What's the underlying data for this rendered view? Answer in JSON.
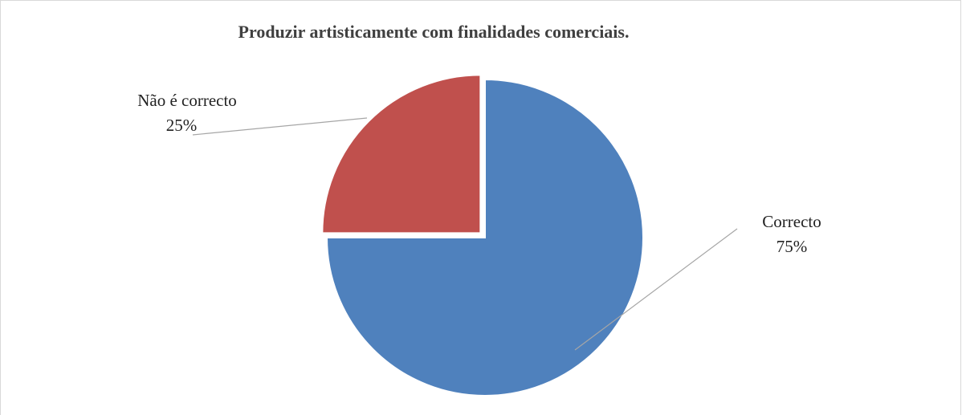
{
  "chart_data": {
    "type": "pie",
    "title": "Produzir artisticamente com finalidades comerciais.",
    "categories": [
      "Correcto",
      "Não é correcto"
    ],
    "values": [
      75,
      25
    ],
    "value_labels": [
      "75%",
      "25%"
    ],
    "colors": [
      "#4f81bd",
      "#c0504d"
    ]
  }
}
